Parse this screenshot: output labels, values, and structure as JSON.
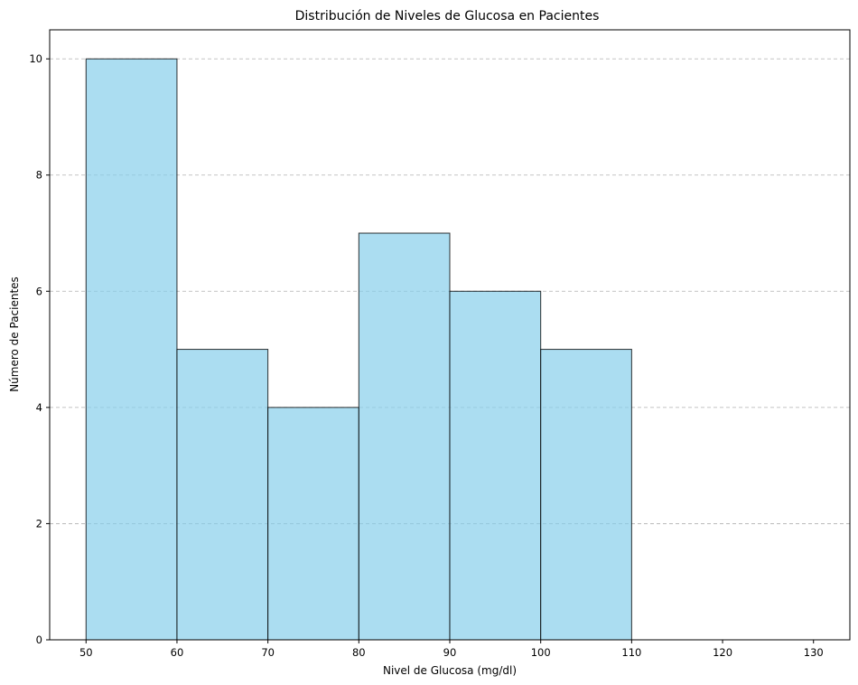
{
  "chart_data": {
    "type": "bar",
    "title": "Distribución de Niveles de Glucosa en Pacientes",
    "xlabel": "Nivel de Glucosa (mg/dl)",
    "ylabel": "Número de Pacientes",
    "bins": [
      {
        "from": 50,
        "to": 60,
        "count": 10
      },
      {
        "from": 60,
        "to": 70,
        "count": 5
      },
      {
        "from": 70,
        "to": 80,
        "count": 4
      },
      {
        "from": 80,
        "to": 90,
        "count": 7
      },
      {
        "from": 90,
        "to": 100,
        "count": 6
      },
      {
        "from": 100,
        "to": 110,
        "count": 5
      }
    ],
    "xlim": [
      46,
      134
    ],
    "ylim": [
      0,
      10.5
    ],
    "xticks": [
      50,
      60,
      70,
      80,
      90,
      100,
      110,
      120,
      130
    ],
    "yticks": [
      0,
      2,
      4,
      6,
      8,
      10
    ],
    "grid": "y dashed",
    "bar_color": "#87CEEB",
    "edge_color": "#000000"
  }
}
